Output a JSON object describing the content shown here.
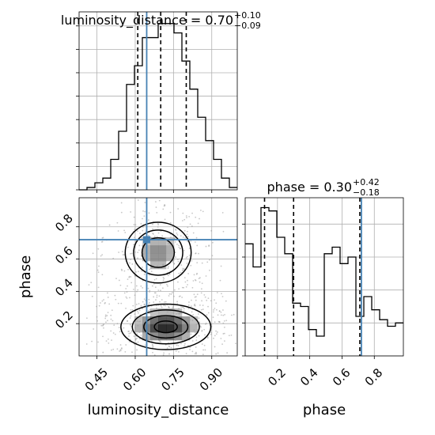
{
  "chart_data": {
    "type": "corner",
    "parameters": [
      "luminosity_distance",
      "phase"
    ],
    "truth": {
      "luminosity_distance": 0.645,
      "phase": 0.72
    },
    "truth_color": "#4682b4",
    "panels": {
      "luminosity_distance_hist": {
        "type": "histogram",
        "title": "luminosity_distance = 0.70",
        "title_sup": "+0.10",
        "title_sub": "−0.09",
        "xlim": [
          0.38,
          1.0
        ],
        "bin_edges": [
          0.38,
          0.411,
          0.442,
          0.473,
          0.504,
          0.535,
          0.566,
          0.597,
          0.628,
          0.659,
          0.69,
          0.721,
          0.752,
          0.783,
          0.814,
          0.845,
          0.876,
          0.907,
          0.938,
          0.969,
          1.0
        ],
        "counts": [
          0,
          1,
          3,
          5,
          13,
          25,
          45,
          53,
          65,
          65,
          71,
          71,
          67,
          55,
          43,
          31,
          21,
          13,
          5,
          1
        ],
        "ylim": [
          0,
          76
        ],
        "quantiles": [
          0.61,
          0.7,
          0.8
        ],
        "yticks": [
          0,
          10,
          20,
          30,
          40,
          50,
          60,
          70
        ]
      },
      "phase_hist": {
        "type": "histogram",
        "title": "phase = 0.30",
        "title_sup": "+0.42",
        "title_sub": "−0.18",
        "xlim": [
          0.0,
          0.98
        ],
        "bin_edges": [
          0.0,
          0.049,
          0.098,
          0.147,
          0.196,
          0.245,
          0.294,
          0.343,
          0.392,
          0.441,
          0.49,
          0.539,
          0.588,
          0.637,
          0.686,
          0.735,
          0.784,
          0.833,
          0.882,
          0.931,
          0.98
        ],
        "counts": [
          34,
          27,
          45,
          44,
          36,
          31,
          16,
          15,
          8,
          6,
          31,
          33,
          28,
          30,
          12,
          18,
          14,
          11,
          9,
          10
        ],
        "ylim": [
          0,
          48
        ],
        "quantiles": [
          0.12,
          0.3,
          0.72
        ],
        "xticks": [
          0.2,
          0.4,
          0.6,
          0.8
        ],
        "xtick_labels": [
          "0.2",
          "0.4",
          "0.6",
          "0.8"
        ],
        "xlabel": "phase"
      },
      "joint": {
        "type": "2d-histogram-contour",
        "xlim": [
          0.38,
          1.0
        ],
        "ylim": [
          0.0,
          0.98
        ],
        "xticks": [
          0.45,
          0.6,
          0.75,
          0.9
        ],
        "xtick_labels": [
          "0.45",
          "0.60",
          "0.75",
          "0.90"
        ],
        "yticks": [
          0.2,
          0.4,
          0.6,
          0.8
        ],
        "ytick_labels": [
          "0.2",
          "0.4",
          "0.6",
          "0.8"
        ],
        "xlabel": "luminosity_distance",
        "ylabel": "phase",
        "modes": [
          {
            "x": 0.72,
            "y": 0.18,
            "sx": 0.075,
            "sy": 0.06,
            "weight": 1.0
          },
          {
            "x": 0.69,
            "y": 0.64,
            "sx": 0.055,
            "sy": 0.08,
            "weight": 0.55
          }
        ]
      }
    }
  }
}
